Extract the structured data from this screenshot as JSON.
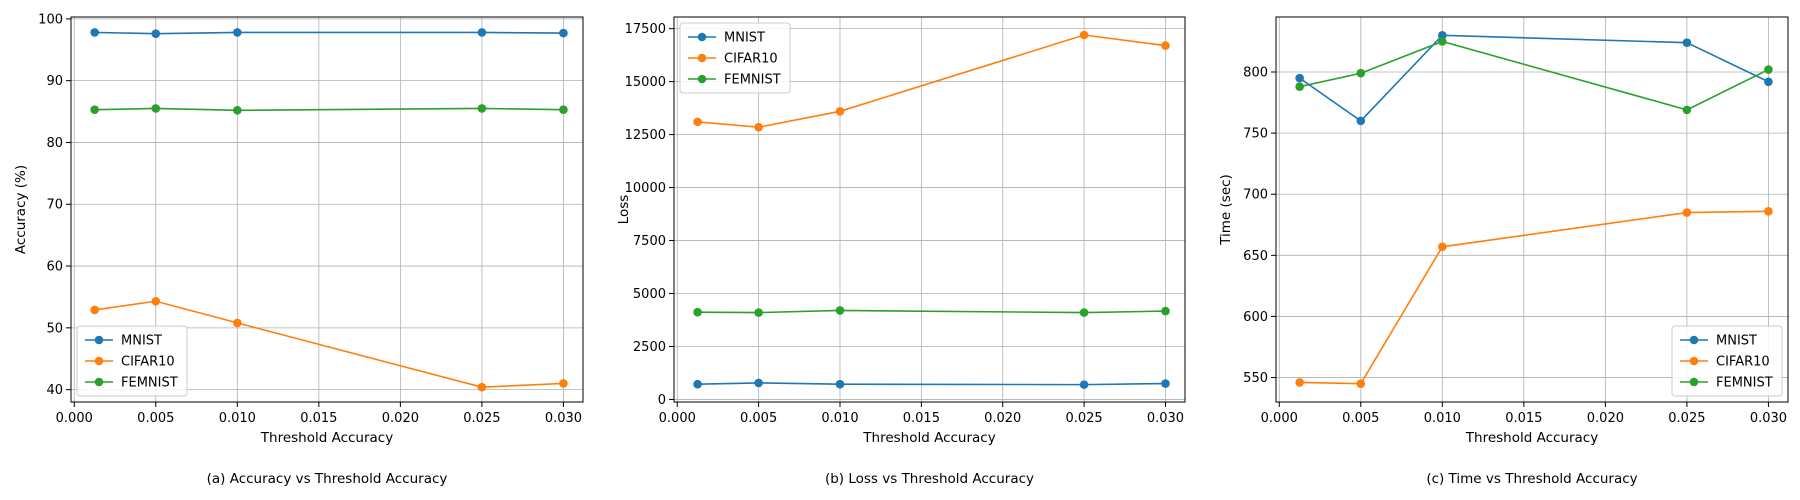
{
  "colors": {
    "MNIST": "#1f77b4",
    "CIFAR10": "#ff7f0e",
    "FEMNIST": "#2ca02c",
    "grid": "#b0b0b0",
    "axis": "#000000"
  },
  "chart_data": [
    {
      "type": "line",
      "caption": "(a) Accuracy vs Threshold Accuracy",
      "xlabel": "Threshold Accuracy",
      "ylabel": "Accuracy (%)",
      "x": [
        0.00125,
        0.005,
        0.01,
        0.025,
        0.03
      ],
      "xlim": [
        -0.0002,
        0.0312
      ],
      "ylim": [
        38,
        100.3
      ],
      "xticks": [
        "0.000",
        "0.005",
        "0.010",
        "0.015",
        "0.020",
        "0.025",
        "0.030"
      ],
      "xtick_values": [
        0,
        0.005,
        0.01,
        0.015,
        0.02,
        0.025,
        0.03
      ],
      "yticks": [
        "40",
        "50",
        "60",
        "70",
        "80",
        "90",
        "100"
      ],
      "ytick_values": [
        40,
        50,
        60,
        70,
        80,
        90,
        100
      ],
      "grid": true,
      "legend_position": "lower-left",
      "series": [
        {
          "name": "MNIST",
          "values": [
            97.8,
            97.6,
            97.8,
            97.8,
            97.7
          ]
        },
        {
          "name": "CIFAR10",
          "values": [
            52.9,
            54.3,
            50.8,
            40.4,
            41.0
          ]
        },
        {
          "name": "FEMNIST",
          "values": [
            85.3,
            85.5,
            85.2,
            85.5,
            85.3
          ]
        }
      ]
    },
    {
      "type": "line",
      "caption": "(b) Loss vs Threshold Accuracy",
      "xlabel": "Threshold Accuracy",
      "ylabel": "Loss",
      "x": [
        0.00125,
        0.005,
        0.01,
        0.025,
        0.03
      ],
      "xlim": [
        -0.0002,
        0.0312
      ],
      "ylim": [
        -120,
        18050
      ],
      "xticks": [
        "0.000",
        "0.005",
        "0.010",
        "0.015",
        "0.020",
        "0.025",
        "0.030"
      ],
      "xtick_values": [
        0,
        0.005,
        0.01,
        0.015,
        0.02,
        0.025,
        0.03
      ],
      "yticks": [
        "0",
        "2500",
        "5000",
        "7500",
        "10000",
        "12500",
        "15000",
        "17500"
      ],
      "ytick_values": [
        0,
        2500,
        5000,
        7500,
        10000,
        12500,
        15000,
        17500
      ],
      "grid": true,
      "legend_position": "upper-left",
      "series": [
        {
          "name": "MNIST",
          "values": [
            720,
            780,
            720,
            700,
            750
          ]
        },
        {
          "name": "CIFAR10",
          "values": [
            13100,
            12850,
            13600,
            17200,
            16700
          ]
        },
        {
          "name": "FEMNIST",
          "values": [
            4120,
            4100,
            4200,
            4100,
            4170
          ]
        }
      ]
    },
    {
      "type": "line",
      "caption": "(c) Time vs Threshold Accuracy",
      "xlabel": "Threshold Accuracy",
      "ylabel": "Time (sec)",
      "x": [
        0.00125,
        0.005,
        0.01,
        0.025,
        0.03
      ],
      "xlim": [
        -0.0002,
        0.0312
      ],
      "ylim": [
        530,
        845
      ],
      "xticks": [
        "0.000",
        "0.005",
        "0.010",
        "0.015",
        "0.020",
        "0.025",
        "0.030"
      ],
      "xtick_values": [
        0,
        0.005,
        0.01,
        0.015,
        0.02,
        0.025,
        0.03
      ],
      "yticks": [
        "550",
        "600",
        "650",
        "700",
        "750",
        "800"
      ],
      "ytick_values": [
        550,
        600,
        650,
        700,
        750,
        800
      ],
      "grid": true,
      "legend_position": "lower-right",
      "series": [
        {
          "name": "MNIST",
          "values": [
            795,
            760,
            830,
            824,
            792
          ]
        },
        {
          "name": "CIFAR10",
          "values": [
            546,
            545,
            657,
            685,
            686
          ]
        },
        {
          "name": "FEMNIST",
          "values": [
            788,
            799,
            825,
            769,
            802
          ]
        }
      ]
    }
  ]
}
